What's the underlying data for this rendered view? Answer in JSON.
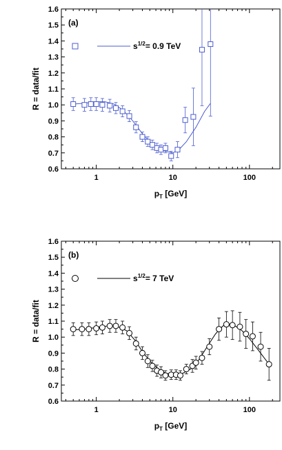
{
  "chart_data": [
    {
      "type": "scatter",
      "panel_label": "(a)",
      "xlabel": "p",
      "xlabel_sub": "T",
      "xlabel_unit": " [GeV]",
      "ylabel": "R = data/fit",
      "xscale": "log",
      "xlim": [
        0.35,
        250
      ],
      "ylim": [
        0.6,
        1.6
      ],
      "yticks": [
        "0.6",
        "0.7",
        "0.8",
        "0.9",
        "1.0",
        "1.1",
        "1.2",
        "1.3",
        "1.4",
        "1.5",
        "1.6"
      ],
      "xticks": [
        "1",
        "10",
        "100"
      ],
      "color": "#4a5bcf",
      "marker": "square",
      "legend": {
        "prefix": "s",
        "sup": "1/2",
        "suffix": "= 0.9 TeV",
        "placement": "top-left"
      },
      "points": {
        "x": [
          0.5,
          0.7,
          0.85,
          1.0,
          1.2,
          1.5,
          1.8,
          2.2,
          2.7,
          3.3,
          4.0,
          4.7,
          5.4,
          6.2,
          7.0,
          8.0,
          9.5,
          11.5,
          14.5,
          18.5,
          24.0,
          31.0
        ],
        "y": [
          1.005,
          1.0,
          1.005,
          1.005,
          1.0,
          0.995,
          0.98,
          0.96,
          0.93,
          0.86,
          0.8,
          0.77,
          0.75,
          0.73,
          0.72,
          0.73,
          0.68,
          0.72,
          0.905,
          0.925,
          1.345,
          1.38
        ],
        "err": [
          0.04,
          0.04,
          0.04,
          0.04,
          0.04,
          0.04,
          0.035,
          0.035,
          0.035,
          0.035,
          0.03,
          0.03,
          0.03,
          0.03,
          0.03,
          0.03,
          0.03,
          0.05,
          0.08,
          0.18,
          0.35,
          0.45
        ]
      },
      "fit": {
        "x": [
          0.5,
          0.7,
          1.0,
          1.3,
          1.7,
          2.2,
          3.0,
          4.0,
          5.0,
          6.5,
          8.0,
          10.0,
          12.0,
          15.0,
          20.0,
          26.0,
          31.0
        ],
        "y": [
          1.005,
          1.01,
          1.02,
          1.02,
          1.005,
          0.97,
          0.9,
          0.82,
          0.77,
          0.73,
          0.71,
          0.7,
          0.72,
          0.77,
          0.86,
          0.96,
          1.01
        ]
      }
    },
    {
      "type": "scatter",
      "panel_label": "(b)",
      "xlabel": "p",
      "xlabel_sub": "T",
      "xlabel_unit": " [GeV]",
      "ylabel": "R = data/fit",
      "xscale": "log",
      "xlim": [
        0.35,
        250
      ],
      "ylim": [
        0.6,
        1.6
      ],
      "yticks": [
        "0.6",
        "0.7",
        "0.8",
        "0.9",
        "1.0",
        "1.1",
        "1.2",
        "1.3",
        "1.4",
        "1.5",
        "1.6"
      ],
      "xticks": [
        "1",
        "10",
        "100"
      ],
      "color": "#000000",
      "marker": "circle",
      "legend": {
        "prefix": "s",
        "sup": "1/2",
        "suffix": "= 7 TeV",
        "placement": "top-left"
      },
      "points": {
        "x": [
          0.5,
          0.65,
          0.8,
          1.0,
          1.2,
          1.5,
          1.8,
          2.2,
          2.7,
          3.3,
          4.0,
          4.7,
          5.4,
          6.2,
          7.0,
          8.0,
          9.5,
          11.0,
          12.5,
          15.0,
          18.0,
          20.0,
          24.0,
          30.0,
          40.0,
          50.0,
          60.0,
          75.0,
          90.0,
          110.0,
          140.0,
          180.0
        ],
        "y": [
          1.05,
          1.05,
          1.05,
          1.055,
          1.06,
          1.07,
          1.07,
          1.06,
          1.025,
          0.96,
          0.9,
          0.85,
          0.82,
          0.79,
          0.78,
          0.76,
          0.765,
          0.765,
          0.76,
          0.8,
          0.82,
          0.84,
          0.87,
          0.94,
          1.05,
          1.08,
          1.075,
          1.065,
          1.02,
          1.005,
          0.94,
          0.83
        ],
        "err": [
          0.04,
          0.04,
          0.04,
          0.04,
          0.04,
          0.04,
          0.04,
          0.04,
          0.04,
          0.04,
          0.04,
          0.04,
          0.035,
          0.035,
          0.035,
          0.03,
          0.03,
          0.03,
          0.03,
          0.03,
          0.04,
          0.04,
          0.04,
          0.05,
          0.07,
          0.08,
          0.09,
          0.09,
          0.09,
          0.09,
          0.09,
          0.1
        ]
      },
      "fit": {
        "x": [
          0.5,
          0.7,
          1.0,
          1.4,
          1.9,
          2.5,
          3.2,
          4.0,
          5.0,
          6.5,
          8.0,
          10.0,
          13.0,
          17.0,
          22.0,
          28.0,
          36.0,
          45.0,
          55.0,
          65.0,
          80.0,
          100.0,
          130.0,
          180.0
        ],
        "y": [
          1.045,
          1.05,
          1.06,
          1.07,
          1.065,
          1.04,
          0.98,
          0.91,
          0.85,
          0.8,
          0.775,
          0.765,
          0.77,
          0.8,
          0.86,
          0.94,
          1.02,
          1.07,
          1.08,
          1.07,
          1.04,
          0.99,
          0.92,
          0.83
        ]
      }
    }
  ]
}
